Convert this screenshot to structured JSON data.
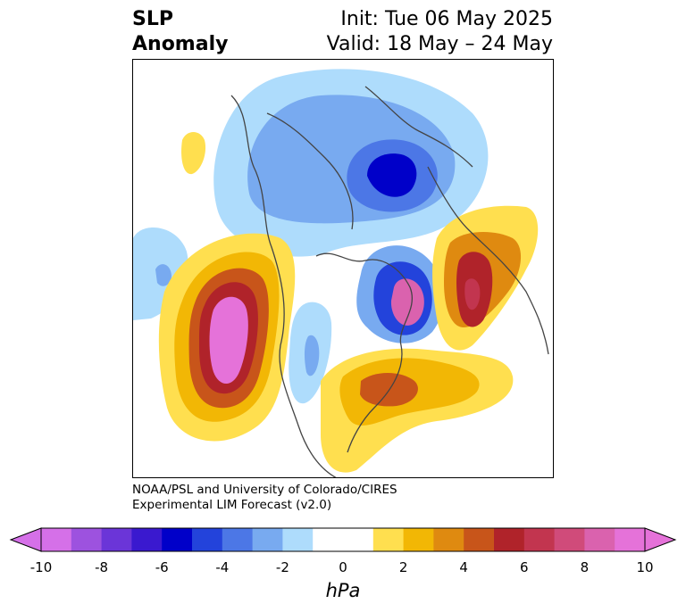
{
  "title": {
    "left_line1": "SLP",
    "left_line2": "Anomaly",
    "init": "Init: Tue 06 May 2025",
    "valid": "Valid: 18 May – 24 May"
  },
  "credit": {
    "line1": "NOAA/PSL and University of Colorado/CIRES",
    "line2": "Experimental LIM Forecast (v2.0)"
  },
  "colorbar": {
    "unit_label": "hPa",
    "ticks": [
      "-10",
      "-8",
      "-6",
      "-4",
      "-2",
      "0",
      "2",
      "4",
      "6",
      "8",
      "10"
    ],
    "bins": [
      "#d570e8",
      "#9d52df",
      "#6b35d8",
      "#3a19cf",
      "#0000c9",
      "#2343db",
      "#4c77e6",
      "#78aaf0",
      "#aedcfc",
      "#ffffff",
      "#ffffff",
      "#ffdf4f",
      "#f2b705",
      "#df8a10",
      "#c8551a",
      "#b0232a",
      "#c2354f",
      "#d04b7a",
      "#da62ae",
      "#e572d9"
    ],
    "under_color": "#d570e8",
    "over_color": "#e572d9"
  }
}
